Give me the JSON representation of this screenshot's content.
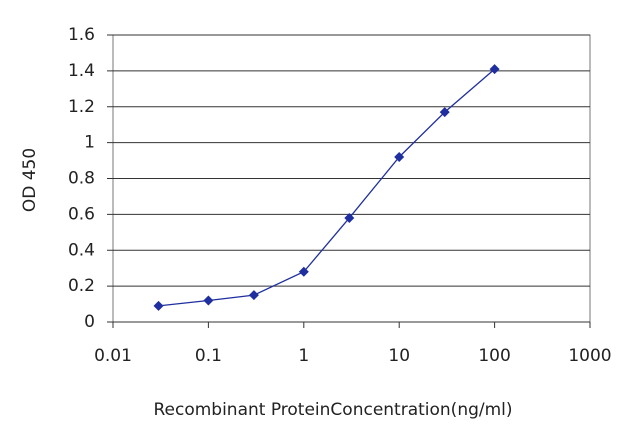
{
  "chart_data": {
    "type": "line",
    "xlabel": "Recombinant ProteinConcentration(ng/ml)",
    "ylabel": "OD 450",
    "x": [
      0.03,
      0.1,
      0.3,
      1,
      3,
      10,
      30,
      100
    ],
    "values": [
      0.09,
      0.12,
      0.15,
      0.28,
      0.58,
      0.92,
      1.17,
      1.41
    ],
    "color": "#1f2f9f",
    "xscale": "log",
    "xlim": [
      0.01,
      1000
    ],
    "xticks": [
      0.01,
      0.1,
      1,
      10,
      100,
      1000
    ],
    "ylim": [
      0,
      1.6
    ],
    "yticks": [
      0,
      0.2,
      0.4,
      0.6,
      0.8,
      1,
      1.2,
      1.4,
      1.6
    ],
    "grid": true
  }
}
